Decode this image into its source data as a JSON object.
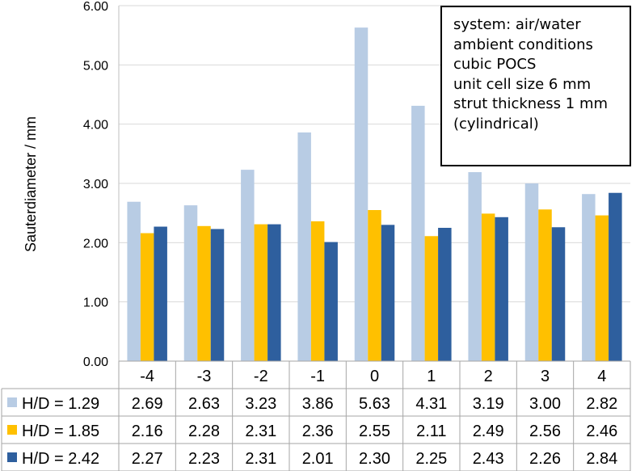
{
  "chart_data": {
    "type": "bar",
    "ylabel": "Sauterdiameter / mm",
    "ylim": [
      0,
      6
    ],
    "yticks": [
      "0.00",
      "1.00",
      "2.00",
      "3.00",
      "4.00",
      "5.00",
      "6.00"
    ],
    "grid": true,
    "categories": [
      "-4",
      "-3",
      "-2",
      "-1",
      "0",
      "1",
      "2",
      "3",
      "4"
    ],
    "series": [
      {
        "name": "H/D = 1.29",
        "color": "#b8cce4",
        "values": [
          2.69,
          2.63,
          3.23,
          3.86,
          5.63,
          4.31,
          3.19,
          3.0,
          2.82
        ],
        "labels": [
          "2.69",
          "2.63",
          "3.23",
          "3.86",
          "5.63",
          "4.31",
          "3.19",
          "3.00",
          "2.82"
        ]
      },
      {
        "name": "H/D = 1.85",
        "color": "#ffc000",
        "values": [
          2.16,
          2.28,
          2.31,
          2.36,
          2.55,
          2.11,
          2.49,
          2.56,
          2.46
        ],
        "labels": [
          "2.16",
          "2.28",
          "2.31",
          "2.36",
          "2.55",
          "2.11",
          "2.49",
          "2.56",
          "2.46"
        ]
      },
      {
        "name": "H/D = 2.42",
        "color": "#2e5f9e",
        "values": [
          2.27,
          2.23,
          2.31,
          2.01,
          2.3,
          2.25,
          2.43,
          2.26,
          2.84
        ],
        "labels": [
          "2.27",
          "2.23",
          "2.31",
          "2.01",
          "2.30",
          "2.25",
          "2.43",
          "2.26",
          "2.84"
        ]
      }
    ],
    "annotation": [
      "system: air/water",
      "ambient conditions",
      "cubic POCS",
      "unit cell size 6 mm",
      "strut thickness 1 mm",
      "(cylindrical)"
    ],
    "data_table": true
  }
}
